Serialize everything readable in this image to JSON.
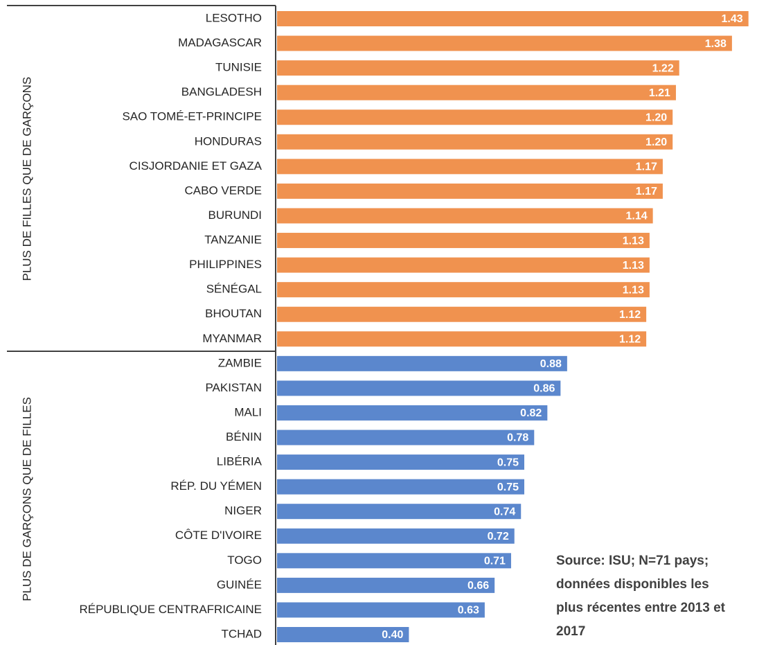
{
  "chart_data": {
    "type": "bar",
    "orientation": "horizontal",
    "xlim": [
      0,
      1.5
    ],
    "groups": [
      {
        "label": "PLUS DE FILLES QUE DE GARÇONS",
        "color": "#f0924f",
        "categories": [
          "LESOTHO",
          "MADAGASCAR",
          "TUNISIE",
          "BANGLADESH",
          "SAO TOMÉ-ET-PRINCIPE",
          "HONDURAS",
          "CISJORDANIE ET GAZA",
          "CABO VERDE",
          "BURUNDI",
          "TANZANIE",
          "PHILIPPINES",
          "SÉNÉGAL",
          "BHOUTAN",
          "MYANMAR"
        ],
        "values": [
          1.43,
          1.38,
          1.22,
          1.21,
          1.2,
          1.2,
          1.17,
          1.17,
          1.14,
          1.13,
          1.13,
          1.13,
          1.12,
          1.12
        ],
        "value_labels": [
          "1.43",
          "1.38",
          "1.22",
          "1.21",
          "1.20",
          "1.20",
          "1.17",
          "1.17",
          "1.14",
          "1.13",
          "1.13",
          "1.13",
          "1.12",
          "1.12"
        ]
      },
      {
        "label": "PLUS DE GARÇONS QUE DE FILLES",
        "color": "#5b87cd",
        "categories": [
          "ZAMBIE",
          "PAKISTAN",
          "MALI",
          "BÉNIN",
          "LIBÉRIA",
          "RÉP. DU YÉMEN",
          "NIGER",
          "CÔTE D'IVOIRE",
          "TOGO",
          "GUINÉE",
          "RÉPUBLIQUE CENTRAFRICAINE",
          "TCHAD"
        ],
        "values": [
          0.88,
          0.86,
          0.82,
          0.78,
          0.75,
          0.75,
          0.74,
          0.72,
          0.71,
          0.66,
          0.63,
          0.4
        ],
        "value_labels": [
          "0.88",
          "0.86",
          "0.82",
          "0.78",
          "0.75",
          "0.75",
          "0.74",
          "0.72",
          "0.71",
          "0.66",
          "0.63",
          "0.40"
        ]
      }
    ],
    "annotation": [
      "Source: ISU; N=71 pays;",
      "données disponibles les",
      "plus récentes entre 2013 et",
      "2017"
    ]
  }
}
